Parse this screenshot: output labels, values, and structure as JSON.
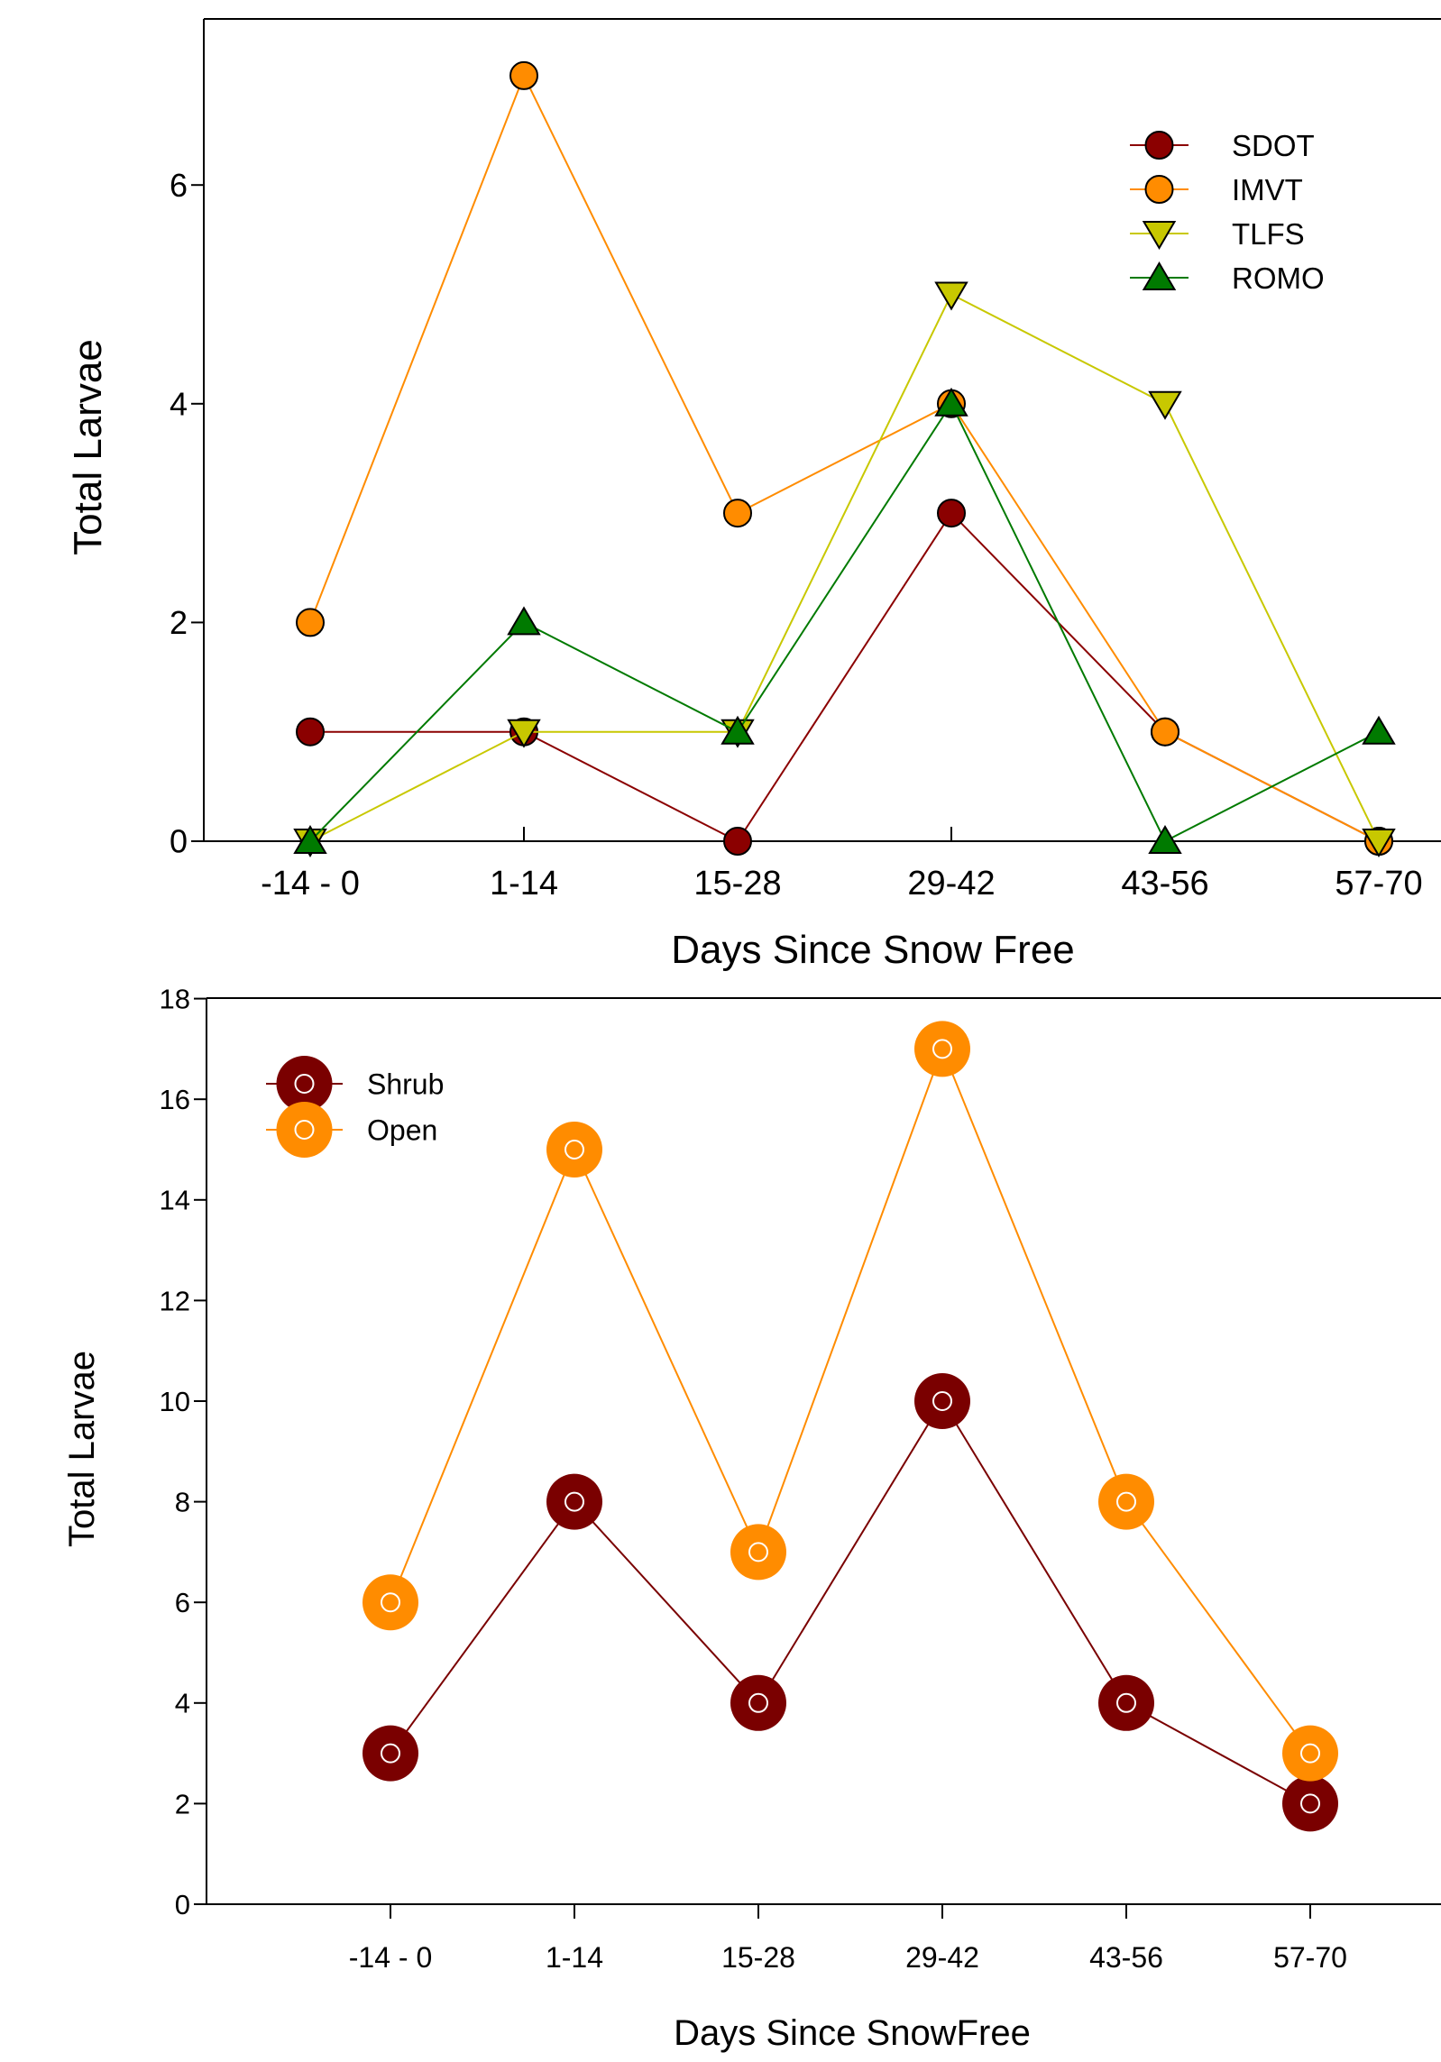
{
  "chart_data": [
    {
      "type": "line",
      "categories": [
        "-14 - 0",
        "1-14",
        "15-28",
        "29-42",
        "43-56",
        "57-70"
      ],
      "xlabel": "Days Since Snow Free",
      "ylabel": "Total Larvae",
      "ylim": [
        0,
        7.5
      ],
      "yticks": [
        "0",
        "2",
        "4",
        "6"
      ],
      "legend_position": "top-right",
      "series": [
        {
          "name": "SDOT",
          "values": [
            1,
            1,
            0,
            3,
            1,
            0
          ],
          "color": "#8b0000",
          "marker": "circle"
        },
        {
          "name": "IMVT",
          "values": [
            2,
            7,
            3,
            4,
            1,
            0
          ],
          "color": "#ff8c00",
          "marker": "circle"
        },
        {
          "name": "TLFS",
          "values": [
            0,
            1,
            1,
            5,
            4,
            0
          ],
          "color": "#c8c800",
          "marker": "triangle-down"
        },
        {
          "name": "ROMO",
          "values": [
            0,
            2,
            1,
            4,
            0,
            1
          ],
          "color": "#007a00",
          "marker": "triangle-up"
        }
      ]
    },
    {
      "type": "line",
      "categories": [
        "-14 - 0",
        "1-14",
        "15-28",
        "29-42",
        "43-56",
        "57-70"
      ],
      "xlabel": "Days Since SnowFree",
      "ylabel": "Total Larvae",
      "ylim": [
        0,
        18
      ],
      "yticks": [
        "0",
        "2",
        "4",
        "6",
        "8",
        "10",
        "12",
        "14",
        "16",
        "18"
      ],
      "legend_position": "top-left",
      "series": [
        {
          "name": "Shrub",
          "values": [
            3,
            8,
            4,
            10,
            4,
            2
          ],
          "color": "#7a0000",
          "marker": "large-circle"
        },
        {
          "name": "Open",
          "values": [
            6,
            15,
            7,
            17,
            8,
            3
          ],
          "color": "#ff8c00",
          "marker": "large-circle"
        }
      ]
    }
  ]
}
